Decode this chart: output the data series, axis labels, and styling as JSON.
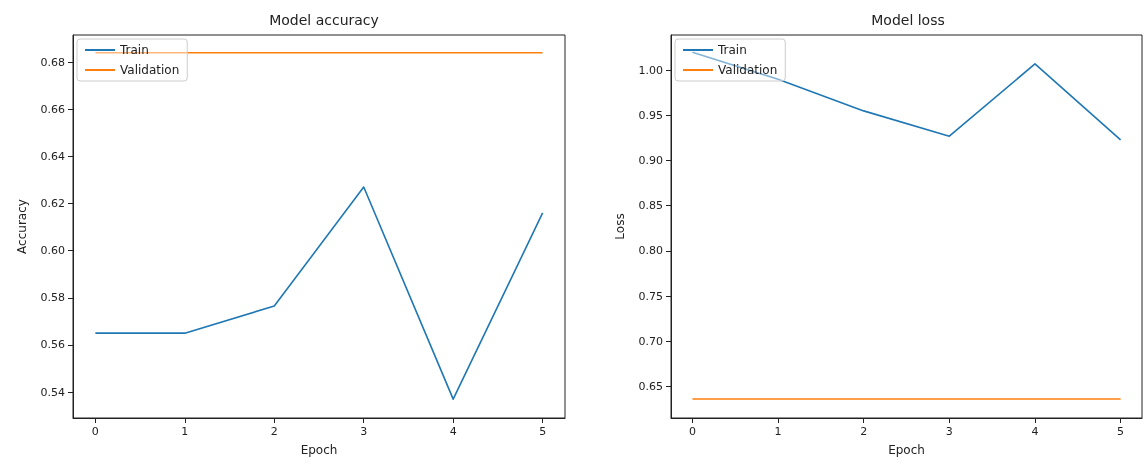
{
  "chart_data": [
    {
      "type": "line",
      "title": "Model accuracy",
      "xlabel": "Epoch",
      "ylabel": "Accuracy",
      "x": [
        0,
        1,
        2,
        3,
        4,
        5
      ],
      "series": [
        {
          "name": "Train",
          "color": "#1f77b4",
          "values": [
            0.565,
            0.565,
            0.5765,
            0.627,
            0.537,
            0.616
          ]
        },
        {
          "name": "Validation",
          "color": "#ff7f0e",
          "values": [
            0.684,
            0.684,
            0.684,
            0.684,
            0.684,
            0.684
          ]
        }
      ],
      "xlim": [
        -0.25,
        5.25
      ],
      "xticks": [
        0,
        1,
        2,
        3,
        4,
        5
      ],
      "ylim": [
        0.529,
        0.6915
      ],
      "yticks": [
        0.54,
        0.56,
        0.58,
        {
          "value": 0.6,
          "label": "0.60"
        },
        0.62,
        0.64,
        0.66,
        0.68
      ],
      "legend": "top left",
      "grid": false,
      "marker": "none",
      "line_style": "solid"
    },
    {
      "type": "line",
      "title": "Model loss",
      "xlabel": "Epoch",
      "ylabel": "Loss",
      "x": [
        0,
        1,
        2,
        3,
        4,
        5
      ],
      "series": [
        {
          "name": "Train",
          "color": "#1f77b4",
          "values": [
            1.02,
            0.99,
            0.955,
            0.927,
            1.007,
            0.923
          ]
        },
        {
          "name": "Validation",
          "color": "#ff7f0e",
          "values": [
            0.636,
            0.636,
            0.636,
            0.636,
            0.636,
            0.636
          ]
        }
      ],
      "xlim": [
        -0.25,
        5.25
      ],
      "xticks": [
        0,
        1,
        2,
        3,
        4,
        5
      ],
      "ylim": [
        0.615,
        1.039
      ],
      "yticks": [
        0.65,
        {
          "value": 0.7,
          "label": "0.70"
        },
        0.75,
        {
          "value": 0.8,
          "label": "0.80"
        },
        0.85,
        {
          "value": 0.9,
          "label": "0.90"
        },
        0.95,
        {
          "value": 1,
          "label": "1.00"
        }
      ],
      "legend": "top left",
      "grid": false,
      "marker": "none",
      "line_style": "solid"
    }
  ]
}
